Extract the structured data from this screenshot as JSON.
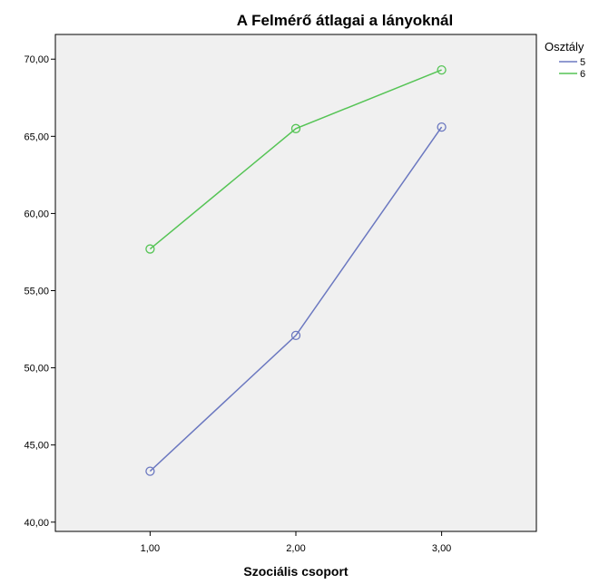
{
  "chart_data": {
    "type": "line",
    "title": "A Felmérő átlagai a lányoknál",
    "xlabel": "Szociális csoport",
    "ylabel": "",
    "x": [
      1,
      2,
      3
    ],
    "x_tick_labels": [
      "1,00",
      "2,00",
      "3,00"
    ],
    "xlim": [
      0.35,
      3.65
    ],
    "ylim": [
      39.4,
      71.6
    ],
    "y_ticks": [
      40,
      45,
      50,
      55,
      60,
      65,
      70
    ],
    "y_tick_labels": [
      "40,00",
      "45,00",
      "50,00",
      "55,00",
      "60,00",
      "65,00",
      "70,00"
    ],
    "grid": false,
    "legend": {
      "title": "Osztály",
      "placement": "right-top"
    },
    "series": [
      {
        "name": "5",
        "color": "#6b78c0",
        "values": [
          43.3,
          52.1,
          65.6
        ]
      },
      {
        "name": "6",
        "color": "#55c455",
        "values": [
          57.7,
          65.5,
          69.3
        ]
      }
    ]
  }
}
